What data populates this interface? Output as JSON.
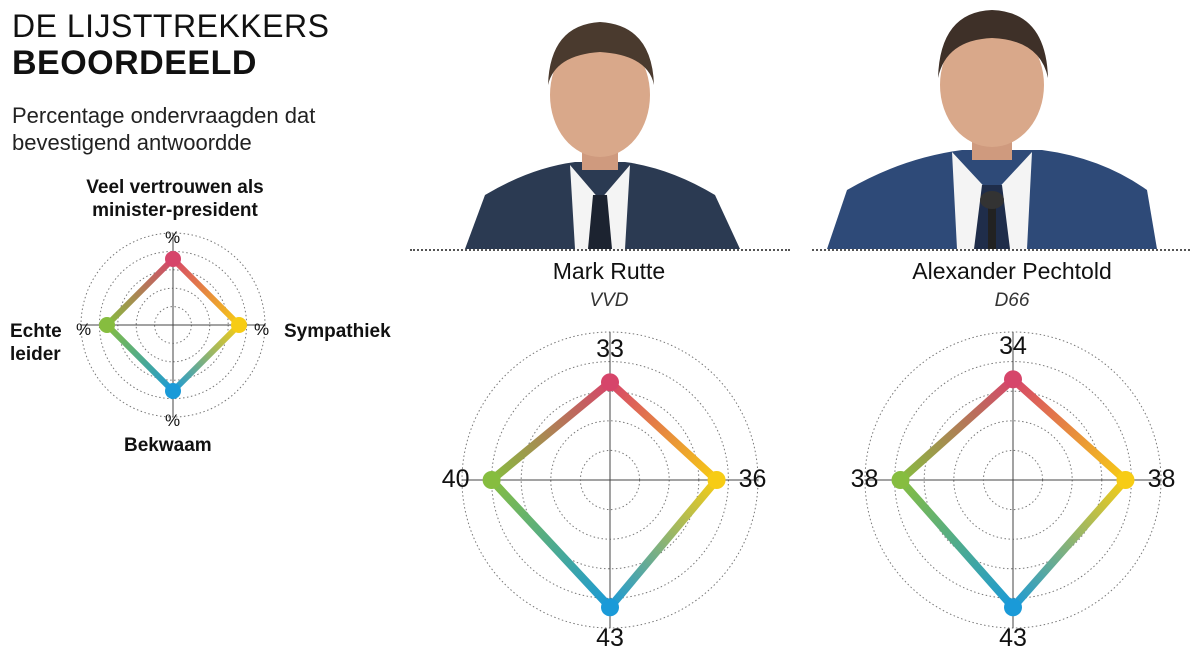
{
  "header": {
    "title_line1": "DE LIJSTTREKKERS",
    "title_line2": "BEOORDEELD",
    "subtitle": "Percentage ondervraagden dat bevestigend antwoordde"
  },
  "legend": {
    "axis_top_line1": "Veel vertrouwen als",
    "axis_top_line2": "minister-president",
    "axis_right": "Sympathiek",
    "axis_bottom": "Bekwaam",
    "axis_left_line1": "Echte",
    "axis_left_line2": "leider",
    "pct_symbol": "%"
  },
  "colors": {
    "top": "#d6456a",
    "right": "#f7cc14",
    "bottom": "#1a9ad8",
    "left": "#86bd3f",
    "gridline": "#777777",
    "suit_rutte": "#2b3a52",
    "suit_pechtold": "#2e4a78",
    "skin": "#d9a88a"
  },
  "candidates": [
    {
      "name": "Mark Rutte",
      "party": "VVD",
      "photo_icon": "portrait-rutte-icon"
    },
    {
      "name": "Alexander Pechtold",
      "party": "D66",
      "photo_icon": "portrait-pechtold-icon"
    }
  ],
  "chart_data": [
    {
      "type": "radar",
      "title": "Mark Rutte",
      "subtitle": "VVD",
      "axes": [
        "Veel vertrouwen als minister-president",
        "Sympathiek",
        "Bekwaam",
        "Echte leider"
      ],
      "values": [
        33,
        36,
        43,
        40
      ],
      "value_labels": [
        "33",
        "36",
        "43",
        "40"
      ],
      "rlim": [
        0,
        50
      ],
      "grid": true,
      "rings": 5
    },
    {
      "type": "radar",
      "title": "Alexander Pechtold",
      "subtitle": "D66",
      "axes": [
        "Veel vertrouwen als minister-president",
        "Sympathiek",
        "Bekwaam",
        "Echte leider"
      ],
      "values": [
        34,
        38,
        43,
        38
      ],
      "value_labels": [
        "34",
        "38",
        "43",
        "38"
      ],
      "rlim": [
        0,
        50
      ],
      "grid": true,
      "rings": 5
    }
  ]
}
